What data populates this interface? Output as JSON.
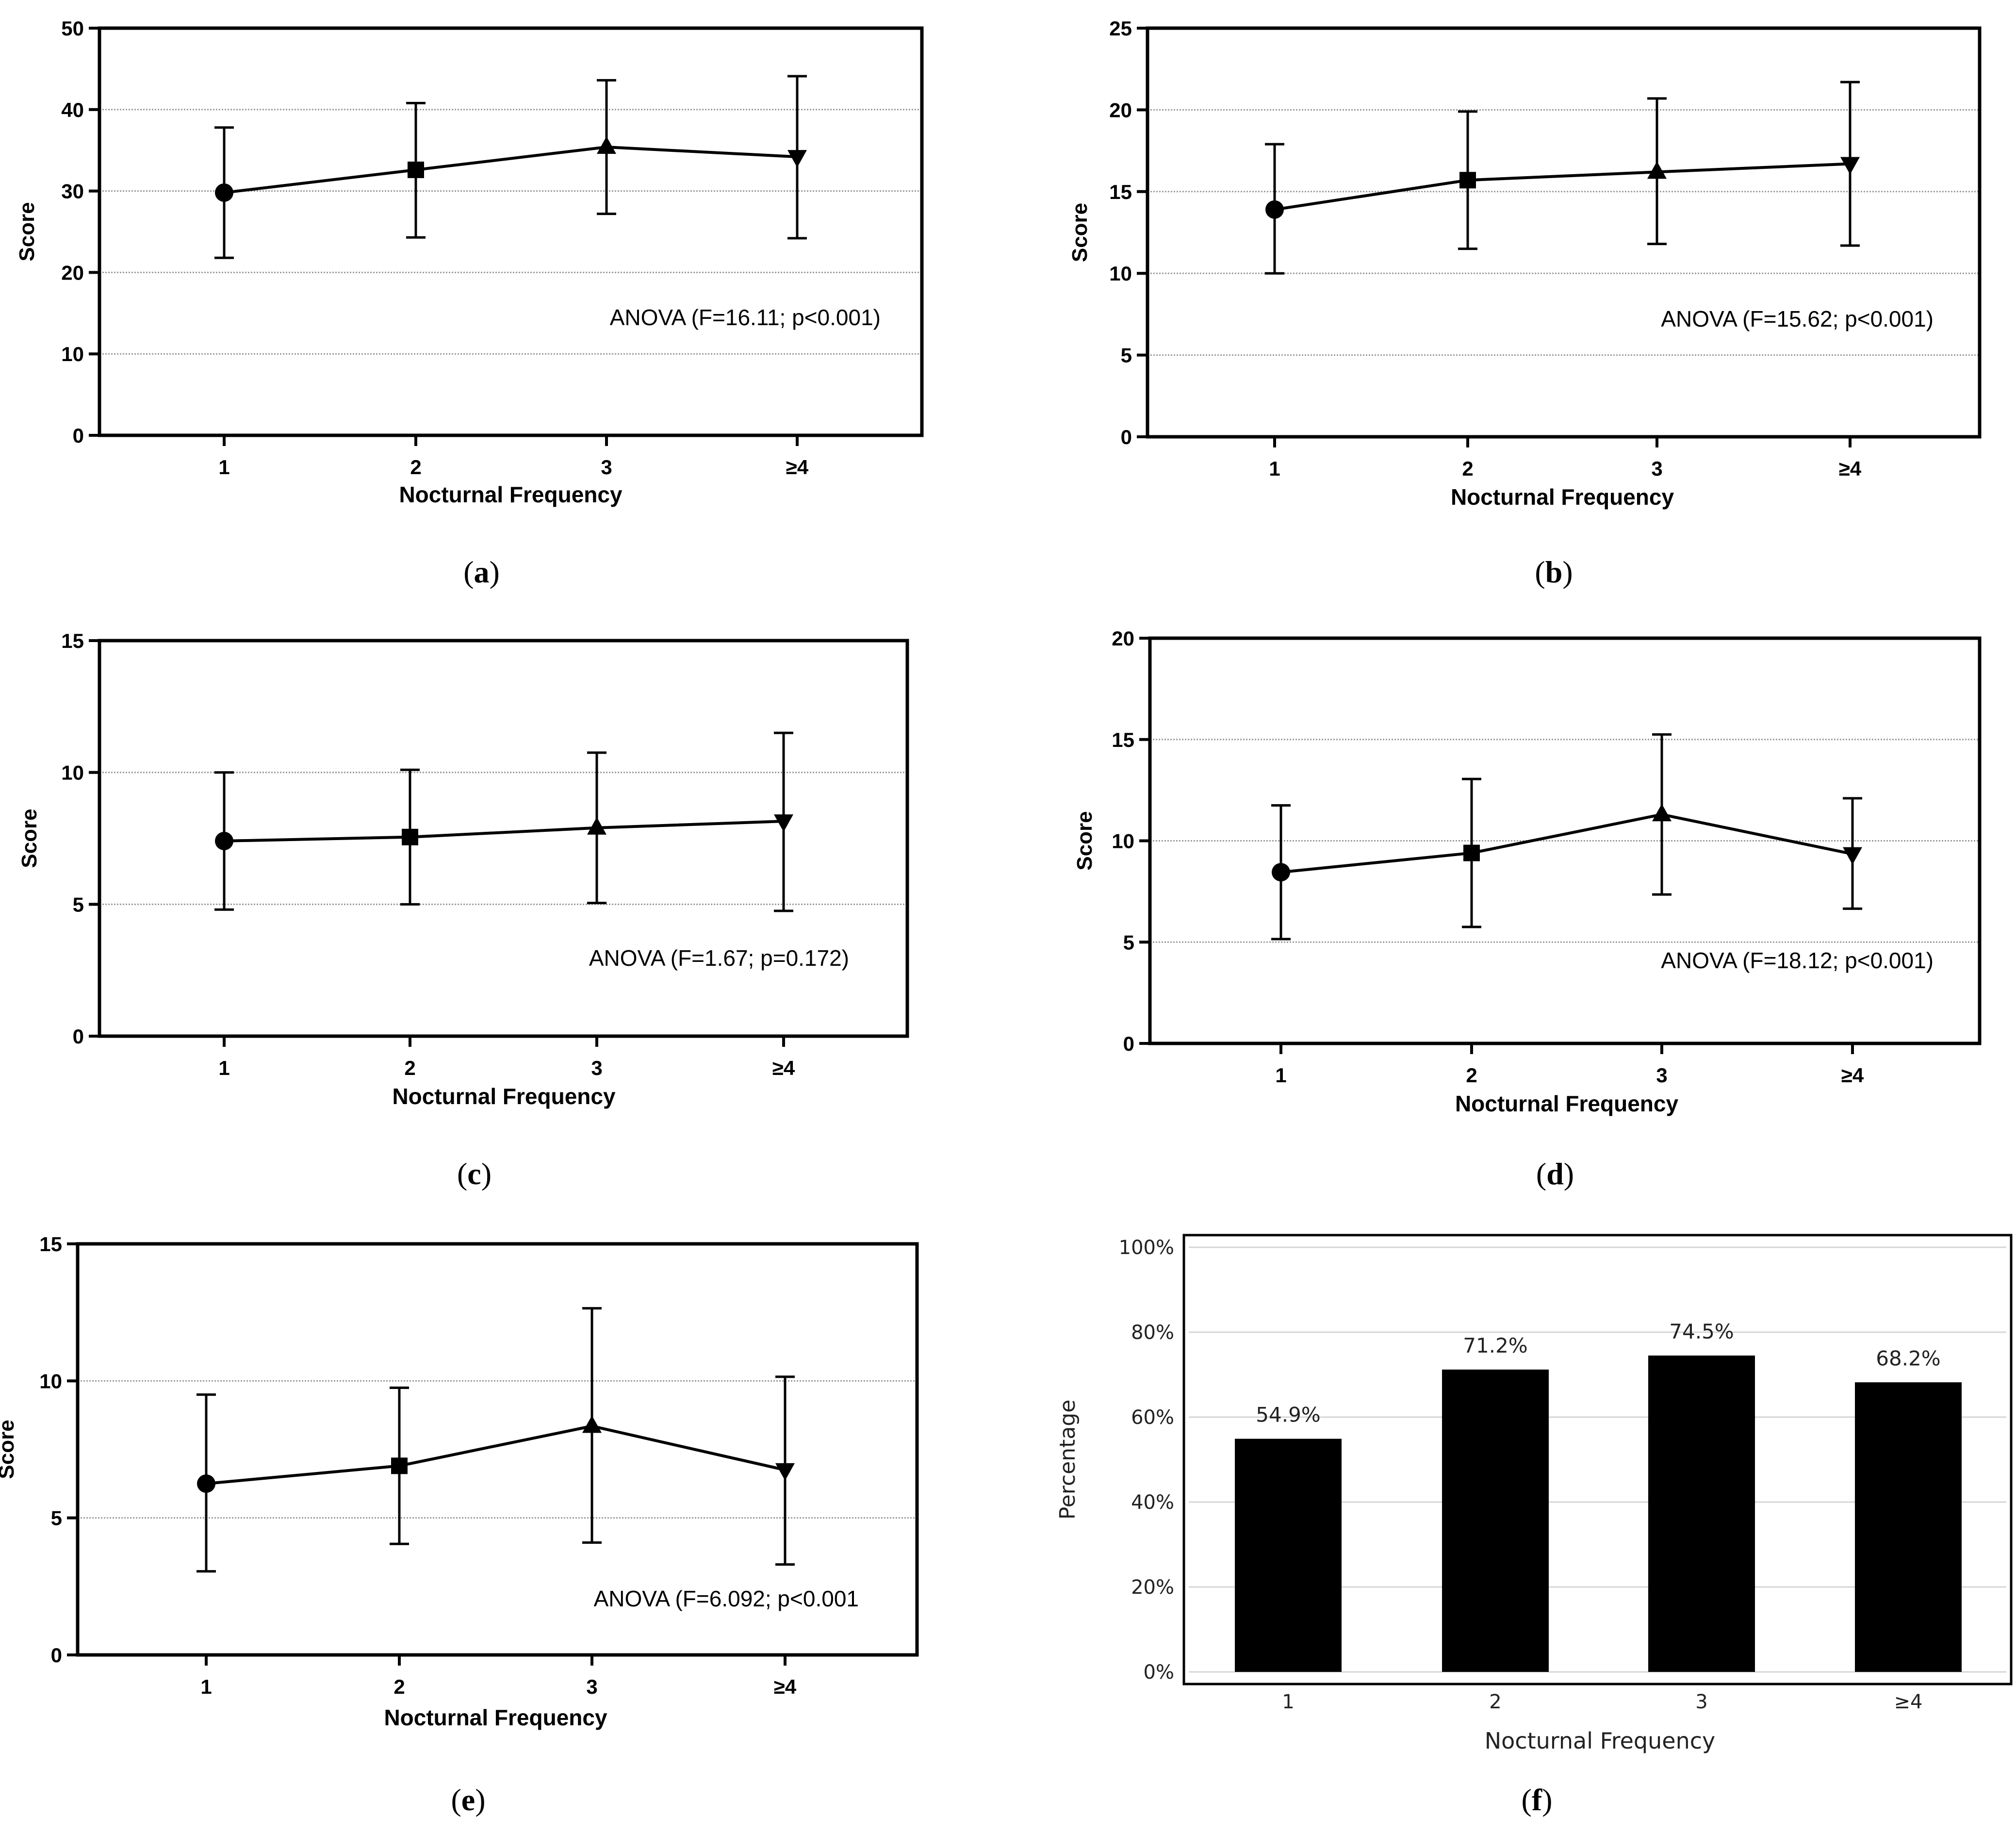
{
  "chart_data": [
    {
      "panel": "a",
      "type": "line",
      "categories": [
        "1",
        "2",
        "3",
        "≥4"
      ],
      "values": [
        29.8,
        32.6,
        35.4,
        34.2
      ],
      "error_low": [
        21.8,
        24.3,
        27.2,
        24.2
      ],
      "error_high": [
        37.8,
        40.8,
        43.6,
        44.1
      ],
      "markers": [
        "circle",
        "square",
        "triangle-up",
        "triangle-down"
      ],
      "ylabel": "Score",
      "xlabel": "Nocturnal Frequency",
      "ylim": [
        0,
        50
      ],
      "yticks": [
        0,
        10,
        20,
        30,
        40,
        50
      ],
      "grid": true,
      "annotation": "ANOVA (F=16.11; p<0.001)",
      "caption": "(a)"
    },
    {
      "panel": "b",
      "type": "line",
      "categories": [
        "1",
        "2",
        "3",
        "≥4"
      ],
      "values": [
        13.9,
        15.7,
        16.2,
        16.7
      ],
      "error_low": [
        10.0,
        11.5,
        11.8,
        11.7
      ],
      "error_high": [
        17.9,
        19.9,
        20.7,
        21.7
      ],
      "markers": [
        "circle",
        "square",
        "triangle-up",
        "triangle-down"
      ],
      "ylabel": "Score",
      "xlabel": "Nocturnal Frequency",
      "ylim": [
        0,
        25
      ],
      "yticks": [
        0,
        5,
        10,
        15,
        20,
        25
      ],
      "grid": true,
      "annotation": "ANOVA (F=15.62; p<0.001)",
      "caption": "(b)"
    },
    {
      "panel": "c",
      "type": "line",
      "categories": [
        "1",
        "2",
        "3",
        "≥4"
      ],
      "values": [
        7.4,
        7.55,
        7.9,
        8.15
      ],
      "error_low": [
        4.8,
        5.0,
        5.05,
        4.75
      ],
      "error_high": [
        10.0,
        10.1,
        10.75,
        11.5
      ],
      "markers": [
        "circle",
        "square",
        "triangle-up",
        "triangle-down"
      ],
      "ylabel": "Score",
      "xlabel": "Nocturnal Frequency",
      "ylim": [
        0,
        15
      ],
      "yticks": [
        0,
        5,
        10,
        15
      ],
      "grid": true,
      "annotation": "ANOVA (F=1.67; p=0.172)",
      "caption": "(c)"
    },
    {
      "panel": "d",
      "type": "line",
      "categories": [
        "1",
        "2",
        "3",
        "≥4"
      ],
      "values": [
        8.45,
        9.4,
        11.3,
        9.35
      ],
      "error_low": [
        5.15,
        5.75,
        7.35,
        6.65
      ],
      "error_high": [
        11.75,
        13.05,
        15.25,
        12.1
      ],
      "markers": [
        "circle",
        "square",
        "triangle-up",
        "triangle-down"
      ],
      "ylabel": "Score",
      "xlabel": "Nocturnal Frequency",
      "ylim": [
        0,
        20
      ],
      "yticks": [
        0,
        5,
        10,
        15,
        20
      ],
      "grid": true,
      "annotation": "ANOVA (F=18.12; p<0.001)",
      "caption": "(d)"
    },
    {
      "panel": "e",
      "type": "line",
      "categories": [
        "1",
        "2",
        "3",
        "≥4"
      ],
      "values": [
        6.25,
        6.9,
        8.35,
        6.75
      ],
      "error_low": [
        3.05,
        4.05,
        4.1,
        3.3
      ],
      "error_high": [
        9.5,
        9.75,
        12.65,
        10.15
      ],
      "markers": [
        "circle",
        "square",
        "triangle-up",
        "triangle-down"
      ],
      "ylabel": "Score",
      "xlabel": "Nocturnal Frequency",
      "ylim": [
        0,
        15
      ],
      "yticks": [
        0,
        5,
        10,
        15
      ],
      "grid": true,
      "annotation": "ANOVA (F=6.092; p<0.001",
      "caption": "(e)"
    },
    {
      "panel": "f",
      "type": "bar",
      "categories": [
        "1",
        "2",
        "3",
        "≥4"
      ],
      "values": [
        54.9,
        71.2,
        74.5,
        68.2
      ],
      "value_labels": [
        "54.9%",
        "71.2%",
        "74.5%",
        "68.2%"
      ],
      "ylabel": "Percentage",
      "xlabel": "Nocturnal Frequency",
      "ylim": [
        0,
        100
      ],
      "yticks": [
        0,
        20,
        40,
        60,
        80,
        100
      ],
      "ytick_labels": [
        "0%",
        "20%",
        "40%",
        "60%",
        "80%",
        "100%"
      ],
      "grid": true,
      "caption": "(f)"
    }
  ]
}
